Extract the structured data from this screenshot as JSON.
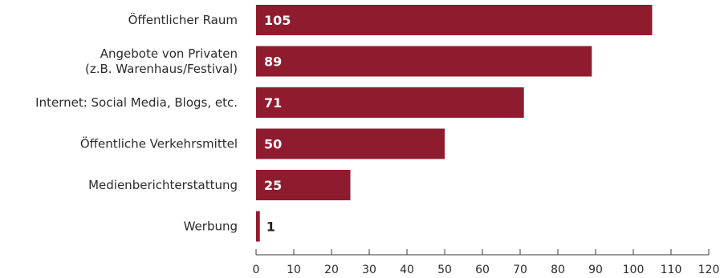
{
  "chart_data": {
    "type": "bar",
    "orientation": "horizontal",
    "title": "",
    "xlabel": "",
    "ylabel": "",
    "categories": [
      [
        "Öffentlicher Raum"
      ],
      [
        "Angebote von Privaten",
        "(z.B. Warenhaus/Festival)"
      ],
      [
        "Internet: Social Media, Blogs, etc."
      ],
      [
        "Öffentliche Verkehrsmittel"
      ],
      [
        "Medienberichterstattung"
      ],
      [
        "Werbung"
      ]
    ],
    "values": [
      105,
      89,
      71,
      50,
      25,
      1
    ],
    "xlim": [
      0,
      120
    ],
    "xticks": [
      0,
      10,
      20,
      30,
      40,
      50,
      60,
      70,
      80,
      90,
      100,
      110,
      120
    ],
    "grid": false,
    "colors": {
      "bar": "#8f1b2f",
      "label_inside": "#ffffff",
      "label_outside": "#222222"
    }
  }
}
